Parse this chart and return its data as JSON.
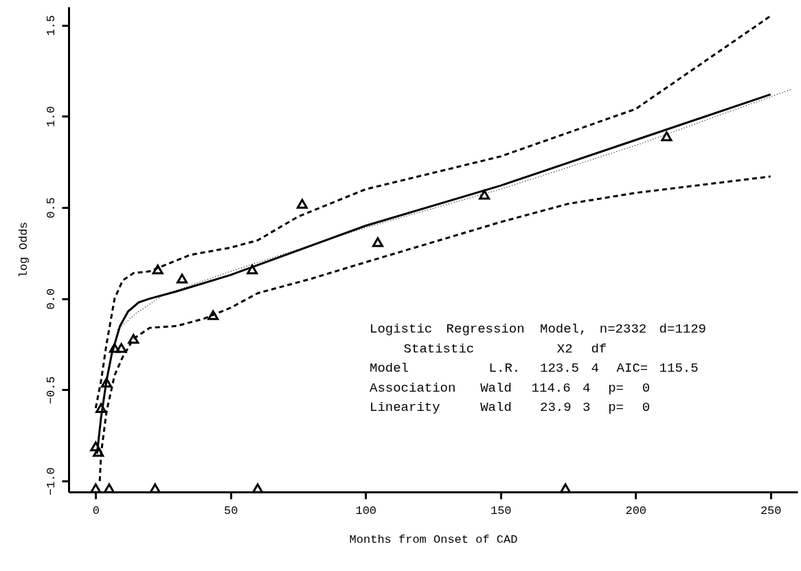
{
  "chart_data": {
    "type": "line",
    "xlabel": "Months from Onset of CAD",
    "ylabel": "log Odds",
    "xlim": [
      -10,
      260
    ],
    "ylim": [
      -1.06,
      1.6
    ],
    "xticks": [
      0,
      50,
      100,
      150,
      200,
      250
    ],
    "yticks": [
      {
        "value": -1.0,
        "label": "−1.0"
      },
      {
        "value": -0.5,
        "label": "−0.5"
      },
      {
        "value": 0.0,
        "label": "0.0"
      },
      {
        "value": 0.5,
        "label": "0.5"
      },
      {
        "value": 1.0,
        "label": "1.0"
      },
      1.5
    ],
    "grid": false,
    "annotations": [
      "Logistic Regression Model, n=2332 d=1129",
      "    Statistic         X2  df",
      "Model         L.R.  123.5 4  AIC= 115.5",
      "Association  Wald  114.6 4  p=  0",
      "Linearity    Wald   23.9 3  p=  0"
    ],
    "series": [
      {
        "type": "scatter",
        "marker": "triangle",
        "color": "#000000",
        "x": [
          0,
          1,
          2,
          4,
          7,
          9.5,
          14,
          23,
          32,
          43.5,
          58,
          76.5,
          104.5,
          144,
          211.5
        ],
        "values": [
          -0.81,
          -0.84,
          -0.6,
          -0.46,
          -0.27,
          -0.27,
          -0.22,
          0.16,
          0.11,
          -0.09,
          0.16,
          0.52,
          0.31,
          0.57,
          0.89
        ]
      },
      {
        "line_style": "solid",
        "color": "#000000",
        "x": [
          0.5,
          2,
          4,
          6,
          9,
          12,
          16,
          20,
          30,
          50,
          100,
          150,
          200,
          250
        ],
        "values": [
          -0.85,
          -0.65,
          -0.45,
          -0.3,
          -0.15,
          -0.07,
          -0.02,
          0.0,
          0.04,
          0.13,
          0.4,
          0.62,
          0.87,
          1.12
        ]
      },
      {
        "line_style": "dashed",
        "color": "#000000",
        "x": [
          0,
          2,
          4,
          7,
          10,
          14,
          20,
          25,
          35,
          50,
          60,
          75,
          100,
          150,
          200,
          250
        ],
        "values": [
          -0.6,
          -0.45,
          -0.25,
          0.0,
          0.1,
          0.14,
          0.15,
          0.18,
          0.24,
          0.28,
          0.32,
          0.45,
          0.6,
          0.78,
          1.04,
          1.55
        ]
      },
      {
        "line_style": "dashed",
        "color": "#000000",
        "x": [
          1.5,
          2,
          4,
          7,
          10,
          14,
          20,
          30,
          40,
          50,
          60,
          80,
          100,
          150,
          175,
          200,
          250
        ],
        "values": [
          -1.0,
          -0.85,
          -0.62,
          -0.42,
          -0.32,
          -0.22,
          -0.16,
          -0.15,
          -0.11,
          -0.05,
          0.03,
          0.11,
          0.2,
          0.42,
          0.52,
          0.58,
          0.67
        ]
      },
      {
        "line_style": "dotted",
        "color": "#000000",
        "x": [
          8,
          15,
          25,
          50,
          100,
          150,
          200,
          258
        ],
        "values": [
          -0.17,
          -0.08,
          0.02,
          0.15,
          0.39,
          0.6,
          0.84,
          1.15
        ]
      },
      {
        "type": "scatter",
        "marker": "triangle",
        "color": "#000000",
        "x": [
          0,
          5,
          22,
          60,
          174
        ],
        "values": [
          -1.04,
          -1.04,
          -1.04,
          -1.04,
          -1.04
        ]
      }
    ]
  }
}
